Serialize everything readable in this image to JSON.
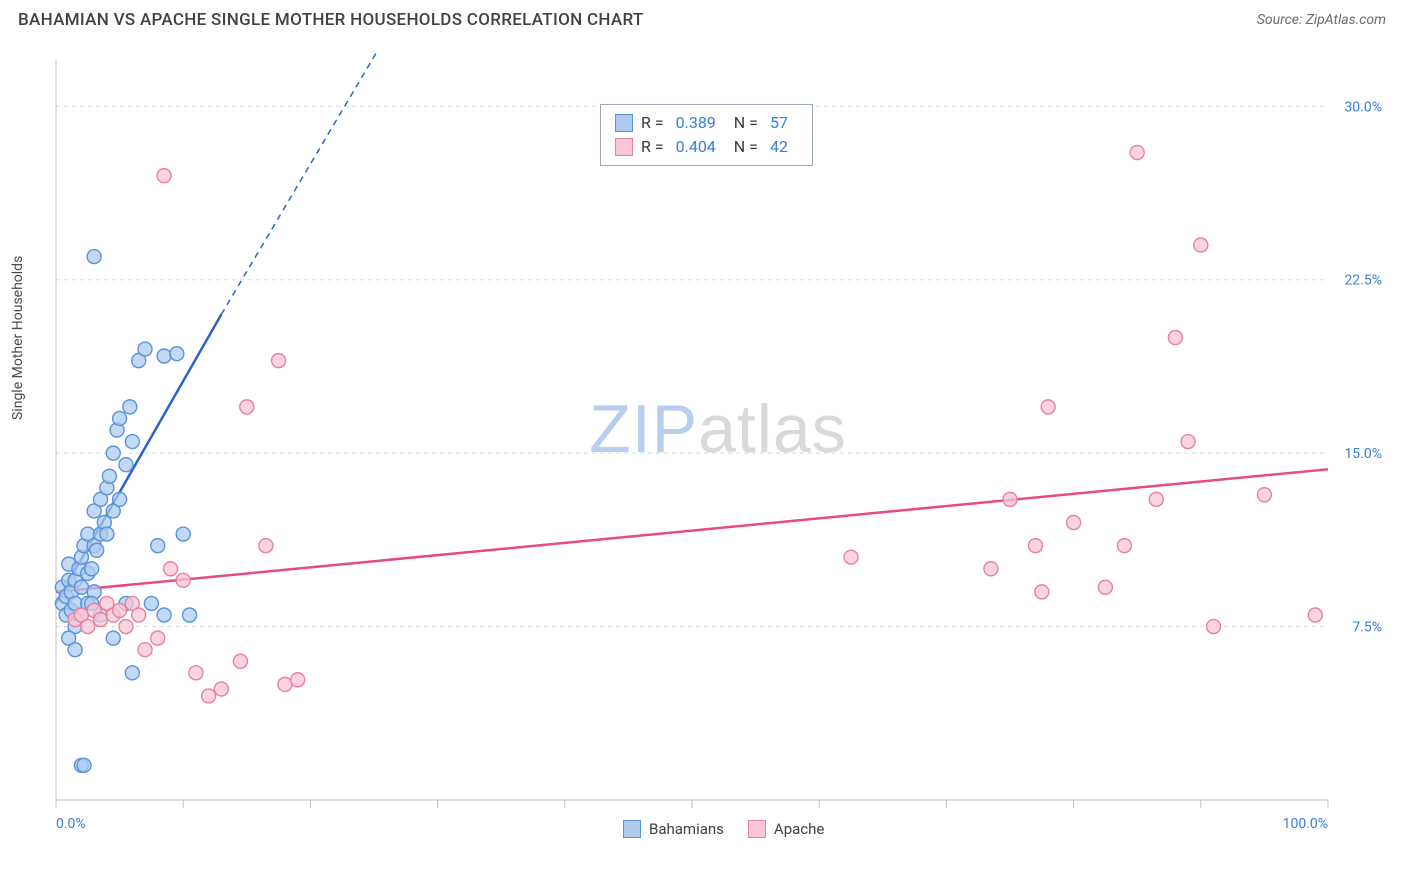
{
  "header": {
    "title": "BAHAMIAN VS APACHE SINGLE MOTHER HOUSEHOLDS CORRELATION CHART",
    "source": "Source: ZipAtlas.com"
  },
  "chart": {
    "type": "scatter",
    "y_axis_label": "Single Mother Households",
    "xlim": [
      0,
      100
    ],
    "ylim": [
      0,
      32
    ],
    "x_ticks": [
      0,
      10,
      20,
      30,
      40,
      50,
      60,
      70,
      80,
      90,
      100
    ],
    "x_tick_labels_shown": {
      "0": "0.0%",
      "100": "100.0%"
    },
    "y_ticks": [
      7.5,
      15.0,
      22.5,
      30.0
    ],
    "y_tick_labels": [
      "7.5%",
      "15.0%",
      "22.5%",
      "30.0%"
    ],
    "grid_color": "#d8d8d8",
    "grid_dash": "4,4",
    "axis_color": "#bfbfbf",
    "background_color": "#ffffff",
    "tick_label_color": "#3b7dd8",
    "axis_label_color": "#4a4a4a",
    "marker_radius": 7,
    "marker_stroke_width": 1.4,
    "trend_line_width": 2.5,
    "series": [
      {
        "name": "Bahamians",
        "fill_color": "#aecbef",
        "stroke_color": "#5b93db",
        "trend_color": "#2a65c7",
        "trend_start": [
          0,
          8.5
        ],
        "trend_end_solid": [
          13,
          21
        ],
        "trend_end_dashed": [
          27,
          34
        ],
        "r": 0.389,
        "n": 57,
        "points": [
          [
            0.5,
            8.5
          ],
          [
            0.5,
            9.2
          ],
          [
            0.8,
            8.0
          ],
          [
            0.8,
            8.8
          ],
          [
            1.0,
            9.5
          ],
          [
            1.0,
            10.2
          ],
          [
            1.2,
            8.2
          ],
          [
            1.2,
            9.0
          ],
          [
            1.5,
            7.5
          ],
          [
            1.5,
            8.5
          ],
          [
            1.5,
            9.5
          ],
          [
            1.8,
            10.0
          ],
          [
            2.0,
            8.0
          ],
          [
            2.0,
            9.2
          ],
          [
            2.0,
            10.5
          ],
          [
            2.2,
            11.0
          ],
          [
            2.5,
            8.5
          ],
          [
            2.5,
            9.8
          ],
          [
            2.5,
            11.5
          ],
          [
            2.8,
            10.0
          ],
          [
            3.0,
            9.0
          ],
          [
            3.0,
            11.0
          ],
          [
            3.0,
            12.5
          ],
          [
            3.2,
            10.8
          ],
          [
            3.5,
            11.5
          ],
          [
            3.5,
            13.0
          ],
          [
            3.8,
            12.0
          ],
          [
            4.0,
            11.5
          ],
          [
            4.0,
            13.5
          ],
          [
            4.2,
            14.0
          ],
          [
            4.5,
            12.5
          ],
          [
            4.5,
            15.0
          ],
          [
            4.8,
            16.0
          ],
          [
            5.0,
            13.0
          ],
          [
            5.0,
            16.5
          ],
          [
            5.5,
            14.5
          ],
          [
            5.8,
            17.0
          ],
          [
            6.0,
            15.5
          ],
          [
            6.0,
            5.5
          ],
          [
            6.5,
            19.0
          ],
          [
            7.0,
            19.5
          ],
          [
            7.5,
            8.5
          ],
          [
            8.0,
            11.0
          ],
          [
            8.5,
            19.2
          ],
          [
            8.5,
            8.0
          ],
          [
            9.5,
            19.3
          ],
          [
            10.0,
            11.5
          ],
          [
            10.5,
            8.0
          ],
          [
            2.0,
            1.5
          ],
          [
            2.2,
            1.5
          ],
          [
            3.0,
            23.5
          ],
          [
            4.5,
            7.0
          ],
          [
            1.0,
            7.0
          ],
          [
            1.5,
            6.5
          ],
          [
            2.8,
            8.5
          ],
          [
            3.5,
            8.0
          ],
          [
            5.5,
            8.5
          ]
        ]
      },
      {
        "name": "Apache",
        "fill_color": "#f8c6d5",
        "stroke_color": "#e8829f",
        "trend_color": "#e94b7a",
        "trend_start": [
          0,
          9.0
        ],
        "trend_end_solid": [
          100,
          14.3
        ],
        "r": 0.404,
        "n": 42,
        "points": [
          [
            1.5,
            7.8
          ],
          [
            2.0,
            8.0
          ],
          [
            2.5,
            7.5
          ],
          [
            3.0,
            8.2
          ],
          [
            3.5,
            7.8
          ],
          [
            4.0,
            8.5
          ],
          [
            4.5,
            8.0
          ],
          [
            5.0,
            8.2
          ],
          [
            5.5,
            7.5
          ],
          [
            6.0,
            8.5
          ],
          [
            6.5,
            8.0
          ],
          [
            7.0,
            6.5
          ],
          [
            8.0,
            7.0
          ],
          [
            8.5,
            27.0
          ],
          [
            9.0,
            10.0
          ],
          [
            10.0,
            9.5
          ],
          [
            11.0,
            5.5
          ],
          [
            12.0,
            4.5
          ],
          [
            13.0,
            4.8
          ],
          [
            14.5,
            6.0
          ],
          [
            15.0,
            17.0
          ],
          [
            16.5,
            11.0
          ],
          [
            17.5,
            19.0
          ],
          [
            18.0,
            5.0
          ],
          [
            19.0,
            5.2
          ],
          [
            62.5,
            10.5
          ],
          [
            73.5,
            10.0
          ],
          [
            75.0,
            13.0
          ],
          [
            77.0,
            11.0
          ],
          [
            77.5,
            9.0
          ],
          [
            78.0,
            17.0
          ],
          [
            80.0,
            12.0
          ],
          [
            82.5,
            9.2
          ],
          [
            84.0,
            11.0
          ],
          [
            85.0,
            28.0
          ],
          [
            86.5,
            13.0
          ],
          [
            88.0,
            20.0
          ],
          [
            89.0,
            15.5
          ],
          [
            90.0,
            24.0
          ],
          [
            91.0,
            7.5
          ],
          [
            95.0,
            13.2
          ],
          [
            99.0,
            8.0
          ]
        ]
      }
    ],
    "legend_top": {
      "r_label": "R  =",
      "n_label": "N  ="
    },
    "watermark": {
      "zip": "ZIP",
      "atlas": "atlas"
    }
  }
}
